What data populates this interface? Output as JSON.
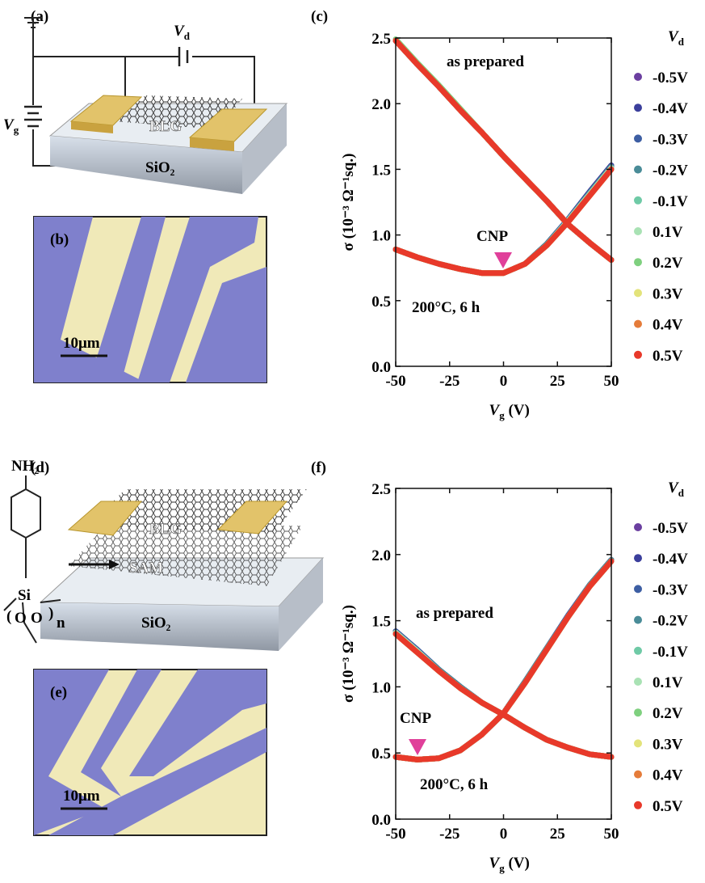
{
  "panels": {
    "a": {
      "label": "(a)",
      "vd": "V",
      "vd_sub": "d",
      "vg": "V",
      "vg_sub": "g",
      "blg": "BLG",
      "sio2": "SiO₂"
    },
    "b": {
      "label": "(b)",
      "scale": "10μm"
    },
    "d": {
      "label": "(d)",
      "nh2": "NH₂",
      "blg": "BLG",
      "sam": "SAM",
      "sio2": "SiO₂",
      "si": "Si",
      "o1": "O",
      "o2": "O",
      "n": "n"
    },
    "e": {
      "label": "(e)",
      "scale": "10μm"
    }
  },
  "chart_data": [
    {
      "type": "line",
      "panel_label": "(c)",
      "x_label": "V",
      "x_label_sub": "g",
      "x_label_unit": " (V)",
      "y_label": "σ (10⁻³ Ω⁻¹sq.)",
      "legend_title": "V",
      "legend_title_sub": "d",
      "annotations": {
        "as_prepared": "as prepared",
        "annealed": "200°C, 6 h",
        "cnp": "CNP"
      },
      "x": [
        -50,
        -40,
        -30,
        -20,
        -10,
        0,
        10,
        20,
        30,
        40,
        50
      ],
      "xlim": [
        -50,
        50
      ],
      "xticks": [
        -50,
        -25,
        0,
        25,
        50
      ],
      "ylim": [
        0,
        2.5
      ],
      "yticks": [
        {
          "value": 0,
          "label": "0.0"
        },
        0.5,
        {
          "value": 1,
          "label": "1.0"
        },
        1.5,
        {
          "value": 2,
          "label": "2.0"
        },
        2.5
      ],
      "series": [
        {
          "name": "-0.5V",
          "color": "#6b3fa0",
          "as_prepared": [
            2.48,
            2.3,
            2.13,
            1.95,
            1.78,
            1.6,
            1.43,
            1.26,
            1.08,
            0.94,
            0.81
          ],
          "annealed": [
            0.89,
            0.83,
            0.78,
            0.74,
            0.71,
            0.71,
            0.78,
            0.93,
            1.12,
            1.33,
            1.53
          ]
        },
        {
          "name": "-0.4V",
          "color": "#3b3f9c",
          "as_prepared": [
            2.48,
            2.3,
            2.13,
            1.95,
            1.78,
            1.6,
            1.43,
            1.26,
            1.08,
            0.94,
            0.81
          ],
          "annealed": [
            0.89,
            0.83,
            0.78,
            0.74,
            0.71,
            0.71,
            0.78,
            0.93,
            1.12,
            1.33,
            1.53
          ]
        },
        {
          "name": "-0.3V",
          "color": "#3d5ea3",
          "as_prepared": [
            2.48,
            2.3,
            2.13,
            1.95,
            1.78,
            1.6,
            1.43,
            1.26,
            1.08,
            0.94,
            0.81
          ],
          "annealed": [
            0.89,
            0.83,
            0.78,
            0.74,
            0.71,
            0.71,
            0.78,
            0.93,
            1.12,
            1.32,
            1.52
          ]
        },
        {
          "name": "-0.2V",
          "color": "#4a8c98",
          "as_prepared": [
            2.48,
            2.3,
            2.13,
            1.95,
            1.78,
            1.6,
            1.43,
            1.26,
            1.08,
            0.94,
            0.81
          ],
          "annealed": [
            0.89,
            0.83,
            0.78,
            0.74,
            0.71,
            0.71,
            0.78,
            0.93,
            1.11,
            1.32,
            1.52
          ]
        },
        {
          "name": "-0.1V",
          "color": "#6fcaa6",
          "as_prepared": [
            2.49,
            2.31,
            2.14,
            1.96,
            1.78,
            1.6,
            1.43,
            1.26,
            1.08,
            0.94,
            0.81
          ],
          "annealed": [
            0.89,
            0.83,
            0.78,
            0.74,
            0.71,
            0.71,
            0.78,
            0.92,
            1.11,
            1.31,
            1.51
          ]
        },
        {
          "name": "0.1V",
          "color": "#a9e2b4",
          "as_prepared": [
            2.49,
            2.31,
            2.14,
            1.96,
            1.78,
            1.6,
            1.43,
            1.26,
            1.08,
            0.94,
            0.81
          ],
          "annealed": [
            0.89,
            0.83,
            0.78,
            0.74,
            0.71,
            0.71,
            0.78,
            0.92,
            1.11,
            1.31,
            1.51
          ]
        },
        {
          "name": "0.2V",
          "color": "#7fd07f",
          "as_prepared": [
            2.49,
            2.31,
            2.14,
            1.96,
            1.78,
            1.6,
            1.43,
            1.26,
            1.08,
            0.94,
            0.81
          ],
          "annealed": [
            0.89,
            0.83,
            0.78,
            0.74,
            0.71,
            0.71,
            0.78,
            0.92,
            1.1,
            1.3,
            1.5
          ]
        },
        {
          "name": "0.3V",
          "color": "#e3e37a",
          "as_prepared": [
            2.48,
            2.3,
            2.13,
            1.95,
            1.78,
            1.6,
            1.43,
            1.26,
            1.08,
            0.94,
            0.81
          ],
          "annealed": [
            0.89,
            0.83,
            0.78,
            0.74,
            0.71,
            0.71,
            0.78,
            0.92,
            1.1,
            1.3,
            1.5
          ]
        },
        {
          "name": "0.4V",
          "color": "#e57c3a",
          "as_prepared": [
            2.48,
            2.3,
            2.13,
            1.95,
            1.78,
            1.6,
            1.43,
            1.26,
            1.08,
            0.94,
            0.81
          ],
          "annealed": [
            0.89,
            0.83,
            0.78,
            0.74,
            0.71,
            0.71,
            0.78,
            0.92,
            1.1,
            1.3,
            1.5
          ]
        },
        {
          "name": "0.5V",
          "color": "#e8392a",
          "as_prepared": [
            2.48,
            2.3,
            2.13,
            1.95,
            1.78,
            1.6,
            1.43,
            1.26,
            1.08,
            0.94,
            0.81
          ],
          "annealed": [
            0.89,
            0.83,
            0.78,
            0.74,
            0.71,
            0.71,
            0.78,
            0.92,
            1.1,
            1.3,
            1.5
          ]
        }
      ]
    },
    {
      "type": "line",
      "panel_label": "(f)",
      "x_label": "V",
      "x_label_sub": "g",
      "x_label_unit": " (V)",
      "y_label": "σ (10⁻³ Ω⁻¹sq.)",
      "legend_title": "V",
      "legend_title_sub": "d",
      "annotations": {
        "as_prepared": "as prepared",
        "annealed": "200°C, 6 h",
        "cnp": "CNP"
      },
      "x": [
        -50,
        -40,
        -30,
        -20,
        -10,
        0,
        10,
        20,
        30,
        40,
        50
      ],
      "xlim": [
        -50,
        50
      ],
      "xticks": [
        -50,
        -25,
        0,
        25,
        50
      ],
      "ylim": [
        0,
        2.5
      ],
      "yticks": [
        {
          "value": 0,
          "label": "0.0"
        },
        0.5,
        {
          "value": 1,
          "label": "1.0"
        },
        1.5,
        {
          "value": 2,
          "label": "2.0"
        },
        2.5
      ],
      "series": [
        {
          "name": "-0.5V",
          "color": "#6b3fa0",
          "as_prepared": [
            1.42,
            1.28,
            1.13,
            1.0,
            0.88,
            0.79,
            0.69,
            0.6,
            0.54,
            0.49,
            0.47
          ],
          "annealed": [
            0.47,
            0.45,
            0.46,
            0.52,
            0.64,
            0.8,
            1.04,
            1.29,
            1.54,
            1.77,
            1.96
          ]
        },
        {
          "name": "-0.4V",
          "color": "#3b3f9c",
          "as_prepared": [
            1.42,
            1.28,
            1.13,
            1.0,
            0.88,
            0.79,
            0.69,
            0.6,
            0.54,
            0.49,
            0.47
          ],
          "annealed": [
            0.47,
            0.45,
            0.46,
            0.52,
            0.64,
            0.8,
            1.04,
            1.29,
            1.54,
            1.77,
            1.96
          ]
        },
        {
          "name": "-0.3V",
          "color": "#3d5ea3",
          "as_prepared": [
            1.42,
            1.28,
            1.13,
            1.0,
            0.88,
            0.79,
            0.69,
            0.6,
            0.54,
            0.49,
            0.47
          ],
          "annealed": [
            0.47,
            0.45,
            0.46,
            0.52,
            0.64,
            0.8,
            1.04,
            1.29,
            1.54,
            1.77,
            1.96
          ]
        },
        {
          "name": "-0.2V",
          "color": "#4a8c98",
          "as_prepared": [
            1.41,
            1.27,
            1.13,
            1.0,
            0.88,
            0.79,
            0.69,
            0.6,
            0.54,
            0.49,
            0.47
          ],
          "annealed": [
            0.47,
            0.45,
            0.46,
            0.52,
            0.64,
            0.8,
            1.04,
            1.29,
            1.53,
            1.77,
            1.96
          ]
        },
        {
          "name": "-0.1V",
          "color": "#6fcaa6",
          "as_prepared": [
            1.41,
            1.27,
            1.12,
            0.99,
            0.88,
            0.79,
            0.69,
            0.6,
            0.54,
            0.49,
            0.47
          ],
          "annealed": [
            0.47,
            0.45,
            0.46,
            0.52,
            0.64,
            0.8,
            1.03,
            1.28,
            1.53,
            1.76,
            1.95
          ]
        },
        {
          "name": "0.1V",
          "color": "#a9e2b4",
          "as_prepared": [
            1.41,
            1.27,
            1.12,
            0.99,
            0.88,
            0.79,
            0.69,
            0.6,
            0.54,
            0.49,
            0.47
          ],
          "annealed": [
            0.47,
            0.45,
            0.46,
            0.52,
            0.64,
            0.8,
            1.03,
            1.28,
            1.53,
            1.76,
            1.95
          ]
        },
        {
          "name": "0.2V",
          "color": "#7fd07f",
          "as_prepared": [
            1.4,
            1.26,
            1.12,
            0.99,
            0.88,
            0.79,
            0.69,
            0.6,
            0.54,
            0.49,
            0.47
          ],
          "annealed": [
            0.47,
            0.45,
            0.46,
            0.52,
            0.64,
            0.8,
            1.03,
            1.28,
            1.53,
            1.76,
            1.95
          ]
        },
        {
          "name": "0.3V",
          "color": "#e3e37a",
          "as_prepared": [
            1.4,
            1.26,
            1.12,
            0.99,
            0.88,
            0.79,
            0.69,
            0.6,
            0.54,
            0.49,
            0.47
          ],
          "annealed": [
            0.47,
            0.45,
            0.46,
            0.52,
            0.64,
            0.8,
            1.03,
            1.28,
            1.53,
            1.76,
            1.95
          ]
        },
        {
          "name": "0.4V",
          "color": "#e57c3a",
          "as_prepared": [
            1.4,
            1.26,
            1.12,
            0.99,
            0.88,
            0.79,
            0.69,
            0.6,
            0.54,
            0.49,
            0.47
          ],
          "annealed": [
            0.47,
            0.45,
            0.46,
            0.52,
            0.64,
            0.8,
            1.03,
            1.28,
            1.53,
            1.76,
            1.95
          ]
        },
        {
          "name": "0.5V",
          "color": "#e8392a",
          "as_prepared": [
            1.4,
            1.26,
            1.12,
            0.99,
            0.88,
            0.79,
            0.69,
            0.6,
            0.54,
            0.49,
            0.47
          ],
          "annealed": [
            0.47,
            0.45,
            0.46,
            0.52,
            0.64,
            0.8,
            1.03,
            1.28,
            1.53,
            1.76,
            1.95
          ]
        }
      ]
    }
  ]
}
